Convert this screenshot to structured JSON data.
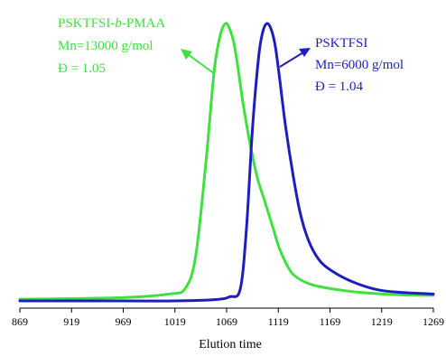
{
  "chart_data": {
    "type": "line",
    "xlabel": "Elution time",
    "ylabel": "",
    "xlim": [
      869,
      1269
    ],
    "xticks": [
      "869",
      "919",
      "969",
      "1019",
      "1069",
      "1119",
      "1169",
      "1219",
      "1269"
    ],
    "ylim": [
      0,
      1
    ],
    "grid": false,
    "series": [
      {
        "name": "PSKTFSI-b-PMAA",
        "color": "#3fe03f",
        "x": [
          869,
          969,
          1014,
          1029,
          1039,
          1049,
          1057,
          1063,
          1068,
          1072,
          1076,
          1080,
          1085,
          1092,
          1099,
          1105,
          1110,
          1115,
          1120,
          1128,
          1135,
          1150,
          1170,
          1200,
          1235,
          1269
        ],
        "y": [
          0.006,
          0.012,
          0.025,
          0.045,
          0.16,
          0.5,
          0.83,
          0.96,
          1.0,
          0.98,
          0.93,
          0.84,
          0.71,
          0.56,
          0.44,
          0.37,
          0.31,
          0.25,
          0.19,
          0.125,
          0.09,
          0.06,
          0.044,
          0.03,
          0.022,
          0.02
        ]
      },
      {
        "name": "PSKTFSI",
        "color": "#1e1ebe",
        "x": [
          869,
          969,
          1019,
          1059,
          1072,
          1082,
          1088,
          1094,
          1100,
          1104,
          1108,
          1112,
          1116,
          1120,
          1126,
          1133,
          1140,
          1148,
          1158,
          1170,
          1190,
          1215,
          1240,
          1269
        ],
        "y": [
          0.0,
          0.0,
          0.0,
          0.005,
          0.015,
          0.04,
          0.25,
          0.62,
          0.88,
          0.97,
          1.0,
          0.98,
          0.92,
          0.81,
          0.63,
          0.46,
          0.32,
          0.22,
          0.15,
          0.11,
          0.07,
          0.04,
          0.03,
          0.025
        ]
      }
    ],
    "annotations": [
      {
        "series": 0,
        "lines": [
          "PSKTFSI-",
          "b",
          "-PMAA",
          "Mn=13000 g/mol",
          "Đ = 1.05"
        ]
      },
      {
        "series": 1,
        "lines": [
          "PSKTFSI",
          "Mn=6000 g/mol",
          "Đ = 1.04"
        ]
      }
    ]
  }
}
